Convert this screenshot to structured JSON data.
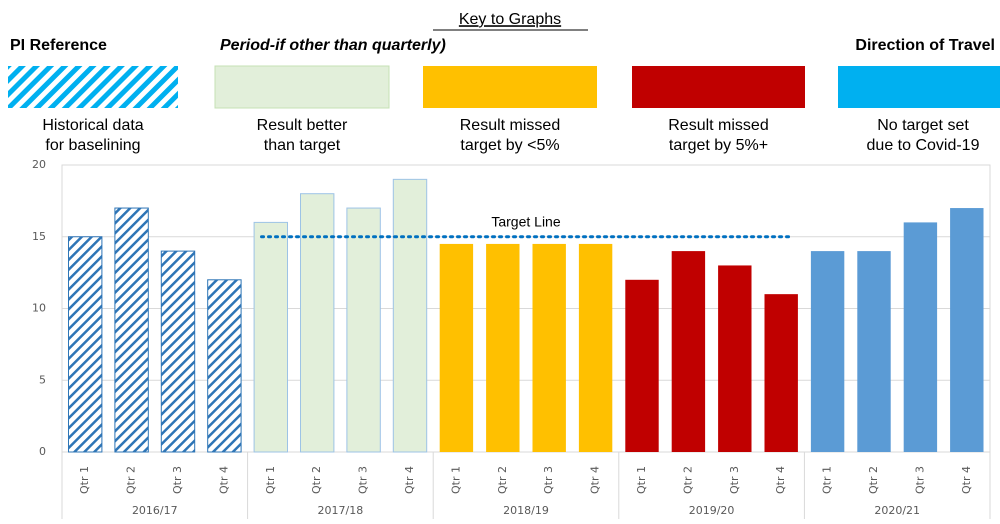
{
  "key": {
    "title": "Key to Graphs",
    "headers": [
      "PI Reference",
      "Period-if other than quarterly)",
      "Direction of Travel"
    ],
    "items": [
      {
        "color": "#00b0f0",
        "hatch": true,
        "label": [
          "Historical data",
          "for baselining"
        ]
      },
      {
        "color": "#e2efda",
        "label": [
          "Result better",
          "than target"
        ]
      },
      {
        "color": "#ffc000",
        "label": [
          "Result missed",
          "target by <5%"
        ]
      },
      {
        "color": "#c00000",
        "label": [
          "Result missed",
          "target by 5%+"
        ]
      },
      {
        "color": "#00b0f0",
        "label": [
          "No target set",
          "due to Covid-19"
        ]
      }
    ]
  },
  "chart_data": {
    "type": "bar",
    "categories": [
      "Qtr 1",
      "Qtr 2",
      "Qtr 3",
      "Qtr 4"
    ],
    "series": [
      {
        "name": "2016/17",
        "color": "#2e75b6",
        "hatch": true,
        "values": [
          15,
          17,
          14,
          12
        ]
      },
      {
        "name": "2017/18",
        "color": "#e2efda",
        "values": [
          16,
          18,
          17,
          19
        ]
      },
      {
        "name": "2018/19",
        "color": "#ffc000",
        "values": [
          14.5,
          14.5,
          14.5,
          14.5
        ]
      },
      {
        "name": "2019/20",
        "color": "#c00000",
        "values": [
          12,
          14,
          13,
          11
        ]
      },
      {
        "name": "2020/21",
        "color": "#5b9bd5",
        "values": [
          14,
          14,
          16,
          17
        ]
      }
    ],
    "target": {
      "value": 15,
      "label": "Target Line",
      "color": "#0070c0"
    },
    "ylim": [
      0,
      20
    ],
    "yticks": [
      0,
      5,
      10,
      15,
      20
    ],
    "grid": true
  }
}
